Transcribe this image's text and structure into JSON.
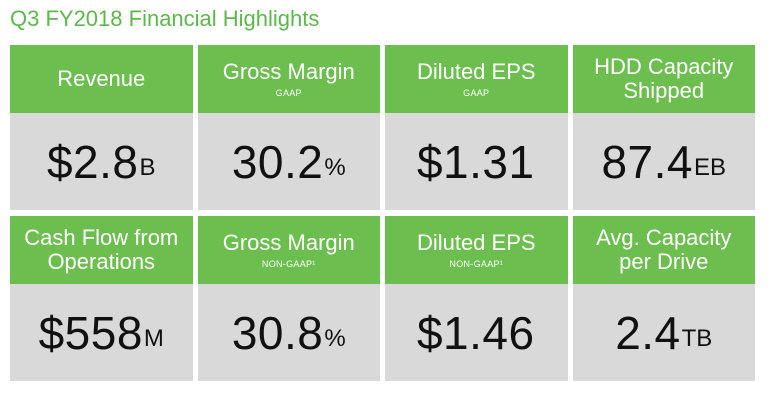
{
  "title": "Q3 FY2018 Financial Highlights",
  "colors": {
    "accent": "#6cbf4f",
    "title": "#5cb84a",
    "panel": "#d9d9d9"
  },
  "tiles": [
    {
      "label": "Revenue",
      "sub": "",
      "value": "$2.8",
      "unit": "B"
    },
    {
      "label": "Gross Margin",
      "sub": "GAAP",
      "value": "30.2",
      "unit": "%"
    },
    {
      "label": "Diluted EPS",
      "sub": "GAAP",
      "value": "$1.31",
      "unit": ""
    },
    {
      "label": "HDD Capacity Shipped",
      "sub": "",
      "value": "87.4",
      "unit": "EB"
    },
    {
      "label": "Cash Flow from Operations",
      "sub": "",
      "value": "$558",
      "unit": "M"
    },
    {
      "label": "Gross Margin",
      "sub": "NON-GAAP¹",
      "value": "30.8",
      "unit": "%"
    },
    {
      "label": "Diluted EPS",
      "sub": "NON-GAAP¹",
      "value": "$1.46",
      "unit": ""
    },
    {
      "label": "Avg. Capacity per Drive",
      "sub": "",
      "value": "2.4",
      "unit": "TB"
    }
  ]
}
